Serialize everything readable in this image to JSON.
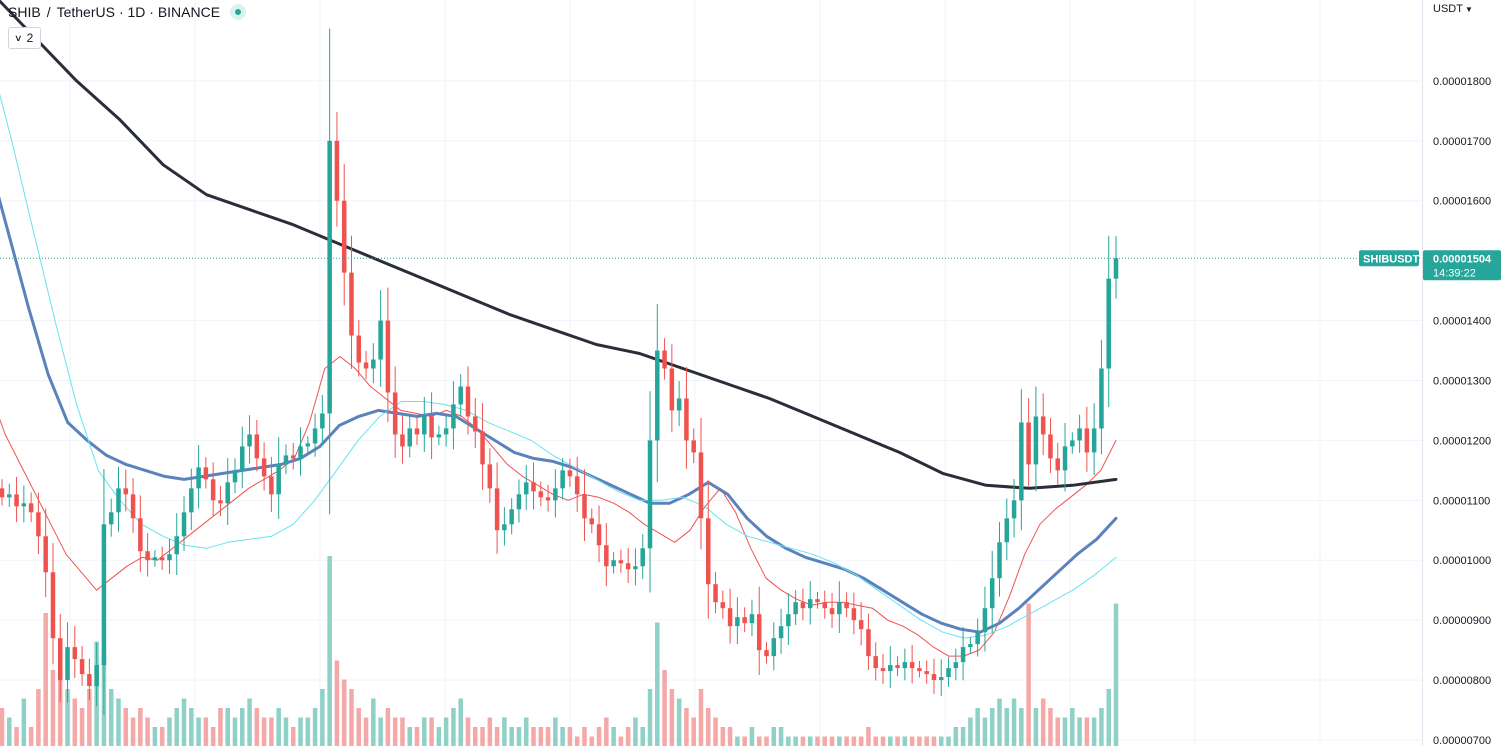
{
  "header": {
    "symbol": "SHIB",
    "separator": "/",
    "quote_name": "TetherUS",
    "interval_exchange": "· 1D · BINANCE",
    "status_icon": "market-open-dot-icon"
  },
  "indicator_badge": {
    "count": "2",
    "icon": "chevron-down-icon"
  },
  "currency_select": {
    "label": "USDT",
    "icon": "chevron-down-icon"
  },
  "last_price": {
    "symbol_label": "SHIBUSDT",
    "price_label": "0.00001504",
    "countdown": "14:39:22",
    "value": 1.504e-05
  },
  "colors": {
    "up": "#26a69a",
    "down": "#ef5350",
    "up_volume": "#8fd0c7",
    "down_volume": "#f4a8a7",
    "ma_short": "#ef5350",
    "ma_medium": "#5b82bc",
    "ma_light": "#66e3f2",
    "ma_long": "#2a2e39",
    "grid": "#f0f3fa",
    "axis_text": "#131722"
  },
  "chart_data": {
    "type": "candlestick",
    "ylim": [
      6.9e-06,
      1.935e-05
    ],
    "y_ticks": [
      {
        "value": 1.8e-05,
        "label": "0.00001800"
      },
      {
        "value": 1.7e-05,
        "label": "0.00001700"
      },
      {
        "value": 1.6e-05,
        "label": "0.00001600"
      },
      {
        "value": 1.4e-05,
        "label": "0.00001400"
      },
      {
        "value": 1.3e-05,
        "label": "0.00001300"
      },
      {
        "value": 1.2e-05,
        "label": "0.00001200"
      },
      {
        "value": 1.1e-05,
        "label": "0.00001100"
      },
      {
        "value": 1e-05,
        "label": "0.00001000"
      },
      {
        "value": 9e-06,
        "label": "0.00000900"
      },
      {
        "value": 8e-06,
        "label": "0.00000800"
      },
      {
        "value": 7e-06,
        "label": "0.00000700"
      }
    ],
    "close_series": [
      11.05,
      11.1,
      10.9,
      10.95,
      10.8,
      10.4,
      9.8,
      8.7,
      8.0,
      8.55,
      8.35,
      8.1,
      7.9,
      8.25,
      10.6,
      10.8,
      11.2,
      11.1,
      10.7,
      10.15,
      10.0,
      10.05,
      10.0,
      10.1,
      10.4,
      10.8,
      11.2,
      11.55,
      11.35,
      11.0,
      10.95,
      11.3,
      11.5,
      11.9,
      12.1,
      11.7,
      11.4,
      11.1,
      11.6,
      11.75,
      11.7,
      11.9,
      11.95,
      12.2,
      12.45,
      17.0,
      16.0,
      14.8,
      13.75,
      13.3,
      13.2,
      13.35,
      14.0,
      12.8,
      12.1,
      11.9,
      12.2,
      12.1,
      12.4,
      12.05,
      12.1,
      12.2,
      12.6,
      12.9,
      12.4,
      12.15,
      11.6,
      11.2,
      10.5,
      10.6,
      10.85,
      11.1,
      11.3,
      11.15,
      11.05,
      11.0,
      11.2,
      11.5,
      11.4,
      11.1,
      10.7,
      10.6,
      10.25,
      9.9,
      10.0,
      9.95,
      9.85,
      9.9,
      10.2,
      12.0,
      13.5,
      13.2,
      12.5,
      12.7,
      12.0,
      11.8,
      10.7,
      9.6,
      9.3,
      9.2,
      8.9,
      9.05,
      8.95,
      9.1,
      8.5,
      8.4,
      8.7,
      8.9,
      9.1,
      9.3,
      9.2,
      9.35,
      9.3,
      9.2,
      9.1,
      9.3,
      9.2,
      9.0,
      8.85,
      8.4,
      8.2,
      8.15,
      8.25,
      8.2,
      8.3,
      8.2,
      8.15,
      8.1,
      8.0,
      8.05,
      8.2,
      8.3,
      8.55,
      8.6,
      8.8,
      9.2,
      9.7,
      10.3,
      10.7,
      11.0,
      12.3,
      11.6,
      12.4,
      12.1,
      11.7,
      11.5,
      11.9,
      12.0,
      12.2,
      11.8,
      12.2,
      13.2,
      14.7,
      15.04
    ],
    "volume_levels": [
      0.2,
      0.15,
      0.1,
      0.25,
      0.1,
      0.3,
      0.7,
      0.4,
      0.35,
      0.3,
      0.25,
      0.2,
      0.3,
      0.55,
      0.5,
      0.3,
      0.25,
      0.2,
      0.15,
      0.2,
      0.15,
      0.1,
      0.1,
      0.15,
      0.2,
      0.25,
      0.2,
      0.15,
      0.15,
      0.1,
      0.2,
      0.2,
      0.15,
      0.2,
      0.25,
      0.2,
      0.15,
      0.15,
      0.2,
      0.15,
      0.1,
      0.15,
      0.15,
      0.2,
      0.3,
      1.0,
      0.45,
      0.35,
      0.3,
      0.2,
      0.15,
      0.25,
      0.15,
      0.2,
      0.15,
      0.15,
      0.1,
      0.1,
      0.15,
      0.15,
      0.1,
      0.15,
      0.2,
      0.25,
      0.15,
      0.1,
      0.1,
      0.15,
      0.1,
      0.15,
      0.1,
      0.1,
      0.15,
      0.1,
      0.1,
      0.1,
      0.15,
      0.1,
      0.1,
      0.05,
      0.1,
      0.05,
      0.1,
      0.15,
      0.1,
      0.05,
      0.1,
      0.15,
      0.1,
      0.3,
      0.65,
      0.4,
      0.3,
      0.25,
      0.2,
      0.15,
      0.3,
      0.2,
      0.15,
      0.1,
      0.1,
      0.05,
      0.05,
      0.1,
      0.05,
      0.05,
      0.1,
      0.1,
      0.05,
      0.05,
      0.05,
      0.05,
      0.05,
      0.05,
      0.05,
      0.05,
      0.05,
      0.05,
      0.05,
      0.1,
      0.05,
      0.05,
      0.05,
      0.05,
      0.05,
      0.05,
      0.05,
      0.05,
      0.05,
      0.05,
      0.05,
      0.1,
      0.1,
      0.15,
      0.2,
      0.15,
      0.2,
      0.25,
      0.2,
      0.25,
      0.2,
      0.75,
      0.2,
      0.25,
      0.2,
      0.15,
      0.15,
      0.2,
      0.15,
      0.15,
      0.15,
      0.2,
      0.3,
      0.75,
      0.2
    ],
    "moving_averages": [
      {
        "key": "ma_short",
        "values": [
          12.8,
          12.1,
          11.6,
          11.1,
          10.6,
          10.1,
          9.8,
          9.5,
          9.7,
          9.9,
          10.05,
          10.0,
          10.2,
          10.4,
          10.6,
          10.8,
          11.0,
          11.2,
          11.35,
          11.5,
          11.7,
          12.3,
          13.2,
          13.4,
          13.2,
          12.9,
          12.7,
          12.5,
          12.45,
          12.4,
          12.5,
          12.4,
          12.2,
          11.9,
          11.6,
          11.4,
          11.25,
          11.1,
          11.0,
          11.1,
          11.05,
          10.95,
          10.8,
          10.6,
          10.45,
          10.3,
          10.5,
          10.9,
          11.2,
          10.8,
          10.2,
          9.7,
          9.5,
          9.35,
          9.25,
          9.3,
          9.3,
          9.25,
          9.2,
          9.0,
          8.9,
          8.75,
          8.55,
          8.4,
          8.4,
          8.5,
          8.8,
          9.4,
          10.1,
          10.6,
          10.85,
          11.05,
          11.25,
          11.5,
          12.0
        ]
      },
      {
        "key": "ma_medium",
        "values": [
          16.6,
          15.4,
          14.2,
          13.1,
          12.3,
          12.0,
          11.75,
          11.6,
          11.5,
          11.4,
          11.35,
          11.4,
          11.45,
          11.5,
          11.55,
          11.6,
          11.7,
          11.9,
          12.25,
          12.4,
          12.5,
          12.45,
          12.4,
          12.45,
          12.4,
          12.2,
          12.0,
          11.8,
          11.7,
          11.65,
          11.55,
          11.4,
          11.25,
          11.1,
          10.95,
          10.95,
          11.1,
          11.3,
          11.1,
          10.7,
          10.4,
          10.2,
          10.05,
          9.95,
          9.85,
          9.7,
          9.5,
          9.3,
          9.1,
          8.95,
          8.85,
          8.8,
          8.95,
          9.2,
          9.5,
          9.8,
          10.1,
          10.35,
          10.7
        ]
      },
      {
        "key": "ma_light",
        "values": [
          18.4,
          17.0,
          15.5,
          14.0,
          12.6,
          11.5,
          11.0,
          10.6,
          10.4,
          10.25,
          10.2,
          10.3,
          10.35,
          10.4,
          10.6,
          11.0,
          11.5,
          12.0,
          12.4,
          12.65,
          12.65,
          12.6,
          12.5,
          12.3,
          12.15,
          12.0,
          11.75,
          11.55,
          11.35,
          11.15,
          11.0,
          11.0,
          11.05,
          10.9,
          10.6,
          10.4,
          10.3,
          10.2,
          10.1,
          9.95,
          9.75,
          9.5,
          9.25,
          9.0,
          8.8,
          8.7,
          8.75,
          8.9,
          9.1,
          9.3,
          9.5,
          9.75,
          10.05
        ]
      },
      {
        "key": "ma_long",
        "values": [
          19.5,
          18.75,
          18.0,
          17.35,
          16.6,
          16.1,
          15.85,
          15.6,
          15.3,
          15.0,
          14.7,
          14.4,
          14.1,
          13.85,
          13.6,
          13.45,
          13.2,
          12.95,
          12.7,
          12.4,
          12.1,
          11.8,
          11.45,
          11.25,
          11.2,
          11.25,
          11.35
        ]
      }
    ]
  }
}
